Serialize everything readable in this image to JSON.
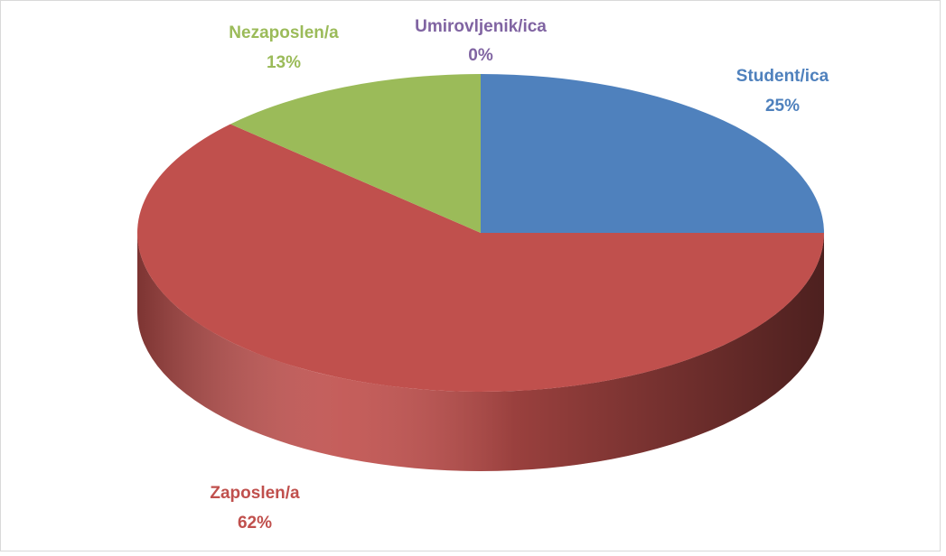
{
  "chart_data": {
    "type": "pie3d",
    "categories": [
      "Student/ica",
      "Zaposlen/a",
      "Nezaposlen/a",
      "Umirovljenik/ica"
    ],
    "values": [
      25,
      62,
      13,
      0
    ],
    "value_labels": [
      "25%",
      "62%",
      "13%",
      "0%"
    ],
    "colors": [
      "#4f81bd",
      "#c0504d",
      "#9bbb59",
      "#8064a2"
    ]
  }
}
